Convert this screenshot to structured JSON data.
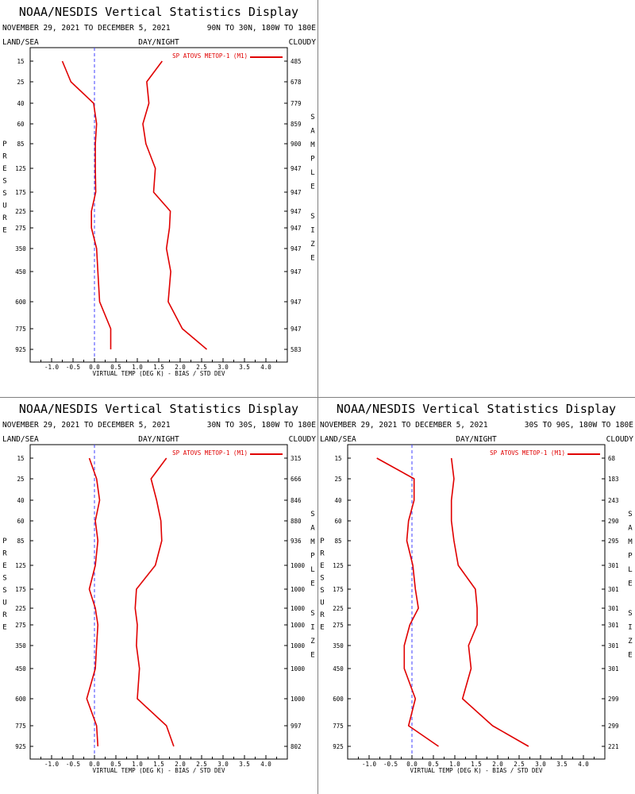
{
  "panels": [
    {
      "title": "NOAA/NESDIS Vertical Statistics Display",
      "dates": "NOVEMBER 29, 2021 TO DECEMBER 5, 2021",
      "region": "90N TO 30N, 180W TO 180E",
      "land_sea": "LAND/SEA",
      "day_night": "DAY/NIGHT",
      "cloudy": "CLOUDY",
      "pressure_label": "PRESSURE",
      "sample_label": "SAMPLE",
      "size_label": "SIZE",
      "xlabel": "VIRTUAL TEMP (DEG K) - BIAS / STD DEV",
      "legend": "SP ATOVS METOP-1 (M1)"
    },
    {
      "title": "NOAA/NESDIS Vertical Statistics Display",
      "dates": "NOVEMBER 29, 2021 TO DECEMBER 5, 2021",
      "region": "30N TO 30S, 180W TO 180E",
      "land_sea": "LAND/SEA",
      "day_night": "DAY/NIGHT",
      "cloudy": "CLOUDY",
      "pressure_label": "PRESSURE",
      "sample_label": "SAMPLE",
      "size_label": "SIZE",
      "xlabel": "VIRTUAL TEMP (DEG K) - BIAS / STD DEV",
      "legend": "SP ATOVS METOP-1 (M1)"
    },
    {
      "title": "NOAA/NESDIS Vertical Statistics Display",
      "dates": "NOVEMBER 29, 2021 TO DECEMBER 5, 2021",
      "region": "30S TO 90S, 180W TO 180E",
      "land_sea": "LAND/SEA",
      "day_night": "DAY/NIGHT",
      "cloudy": "CLOUDY",
      "pressure_label": "PRESSURE",
      "sample_label": "SAMPLE",
      "size_label": "SIZE",
      "xlabel": "VIRTUAL TEMP (DEG K) - BIAS / STD DEV",
      "legend": "SP ATOVS METOP-1 (M1)"
    }
  ],
  "colors": {
    "series": "#e00000",
    "zero_line": "#4040ff",
    "axis": "#000000",
    "divider": "#808080"
  },
  "chart_data": [
    {
      "type": "line",
      "pressure_levels": [
        "15",
        "25",
        "40",
        "60",
        "85",
        "125",
        "175",
        "225",
        "275",
        "350",
        "450",
        "600",
        "775",
        "925"
      ],
      "xlim": [
        -1.5,
        4.5
      ],
      "xticks": [
        "-1.0",
        "-0.5",
        "0.0",
        "0.5",
        "1.0",
        "1.5",
        "2.0",
        "2.5",
        "3.0",
        "3.5",
        "4.0"
      ],
      "sample_size": [
        "485",
        "678",
        "779",
        "859",
        "900",
        "947",
        "947",
        "947",
        "947",
        "947",
        "947",
        "947",
        "947",
        "583"
      ],
      "series": [
        {
          "name": "SP ATOVS METOP-1 (M1)",
          "kind": "bias",
          "values": [
            -0.75,
            -0.55,
            -0.02,
            0.05,
            0.02,
            0.02,
            0.03,
            -0.07,
            -0.07,
            0.05,
            0.08,
            0.12,
            0.38,
            0.38
          ]
        },
        {
          "name": "SP ATOVS METOP-1 (M1)",
          "kind": "std_dev",
          "values": [
            1.58,
            1.22,
            1.27,
            1.13,
            1.2,
            1.42,
            1.38,
            1.77,
            1.75,
            1.68,
            1.78,
            1.72,
            2.05,
            2.62
          ]
        }
      ]
    },
    {
      "type": "line",
      "pressure_levels": [
        "15",
        "25",
        "40",
        "60",
        "85",
        "125",
        "175",
        "225",
        "275",
        "350",
        "450",
        "600",
        "775",
        "925"
      ],
      "xlim": [
        -1.5,
        4.5
      ],
      "xticks": [
        "-1.0",
        "-0.5",
        "0.0",
        "0.5",
        "1.0",
        "1.5",
        "2.0",
        "2.5",
        "3.0",
        "3.5",
        "4.0"
      ],
      "sample_size": [
        "315",
        "666",
        "846",
        "880",
        "936",
        "1000",
        "1000",
        "1000",
        "1000",
        "1000",
        "1000",
        "1000",
        "997",
        "802"
      ],
      "series": [
        {
          "name": "SP ATOVS METOP-1 (M1)",
          "kind": "bias",
          "values": [
            -0.12,
            0.05,
            0.12,
            0.02,
            0.08,
            0.02,
            -0.12,
            0.02,
            0.08,
            0.05,
            0.02,
            -0.18,
            0.05,
            0.08
          ]
        },
        {
          "name": "SP ATOVS METOP-1 (M1)",
          "kind": "std_dev",
          "values": [
            1.68,
            1.32,
            1.45,
            1.55,
            1.57,
            1.42,
            0.98,
            0.95,
            1.0,
            0.98,
            1.05,
            1.0,
            1.68,
            1.85
          ]
        }
      ]
    },
    {
      "type": "line",
      "pressure_levels": [
        "15",
        "25",
        "40",
        "60",
        "85",
        "125",
        "175",
        "225",
        "275",
        "350",
        "450",
        "600",
        "775",
        "925"
      ],
      "xlim": [
        -1.5,
        4.5
      ],
      "xticks": [
        "-1.0",
        "-0.5",
        "0.0",
        "0.5",
        "1.0",
        "1.5",
        "2.0",
        "2.5",
        "3.0",
        "3.5",
        "4.0"
      ],
      "sample_size": [
        "68",
        "183",
        "243",
        "290",
        "295",
        "301",
        "301",
        "301",
        "301",
        "301",
        "301",
        "299",
        "299",
        "221"
      ],
      "series": [
        {
          "name": "SP ATOVS METOP-1 (M1)",
          "kind": "bias",
          "values": [
            -0.82,
            0.05,
            0.05,
            -0.08,
            -0.12,
            0.02,
            0.08,
            0.15,
            -0.05,
            -0.18,
            -0.18,
            0.08,
            -0.08,
            0.62
          ]
        },
        {
          "name": "SP ATOVS METOP-1 (M1)",
          "kind": "std_dev",
          "values": [
            0.92,
            0.98,
            0.92,
            0.92,
            0.98,
            1.08,
            1.48,
            1.52,
            1.52,
            1.32,
            1.38,
            1.18,
            1.88,
            2.72
          ]
        }
      ]
    }
  ]
}
